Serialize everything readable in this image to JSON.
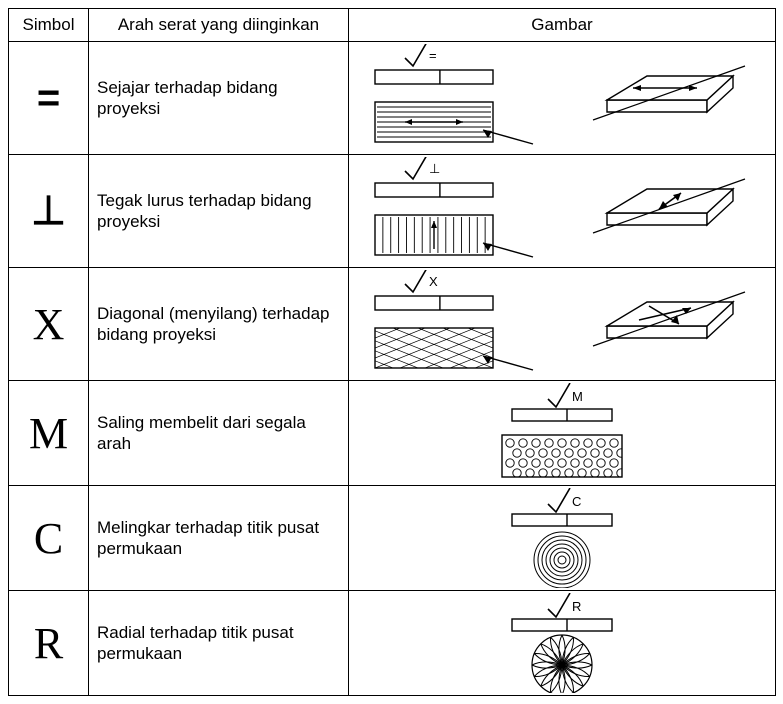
{
  "headers": {
    "col1": "Simbol",
    "col2": "Arah serat yang diinginkan",
    "col3": "Gambar"
  },
  "rows": [
    {
      "symbol": "=",
      "sym_class": "sym",
      "desc": "Sejajar terhadap bidang proyeksi",
      "marker": "=",
      "layout": "two",
      "pattern": "parallel"
    },
    {
      "symbol": "⊥",
      "sym_class": "sym",
      "desc": "Tegak lurus terhadap bidang proyeksi",
      "marker": "⊥",
      "layout": "two",
      "pattern": "perpendicular"
    },
    {
      "symbol": "X",
      "sym_class": "sym serif",
      "desc": "Diagonal (menyilang) terhadap bidang proyeksi",
      "marker": "X",
      "layout": "two",
      "pattern": "cross"
    },
    {
      "symbol": "M",
      "sym_class": "sym serif",
      "desc": "Saling membelit dari segala arah",
      "marker": "M",
      "layout": "single",
      "pattern": "multi"
    },
    {
      "symbol": "C",
      "sym_class": "sym serif",
      "desc": "Melingkar terhadap titik pusat permukaan",
      "marker": "C",
      "layout": "single",
      "pattern": "concentric"
    },
    {
      "symbol": "R",
      "sym_class": "sym serif",
      "desc": "Radial terhadap titik pusat permukaan",
      "marker": "R",
      "layout": "single",
      "pattern": "radial"
    }
  ],
  "style": {
    "stroke": "#000000",
    "fill_white": "#ffffff",
    "font": "Arial"
  }
}
